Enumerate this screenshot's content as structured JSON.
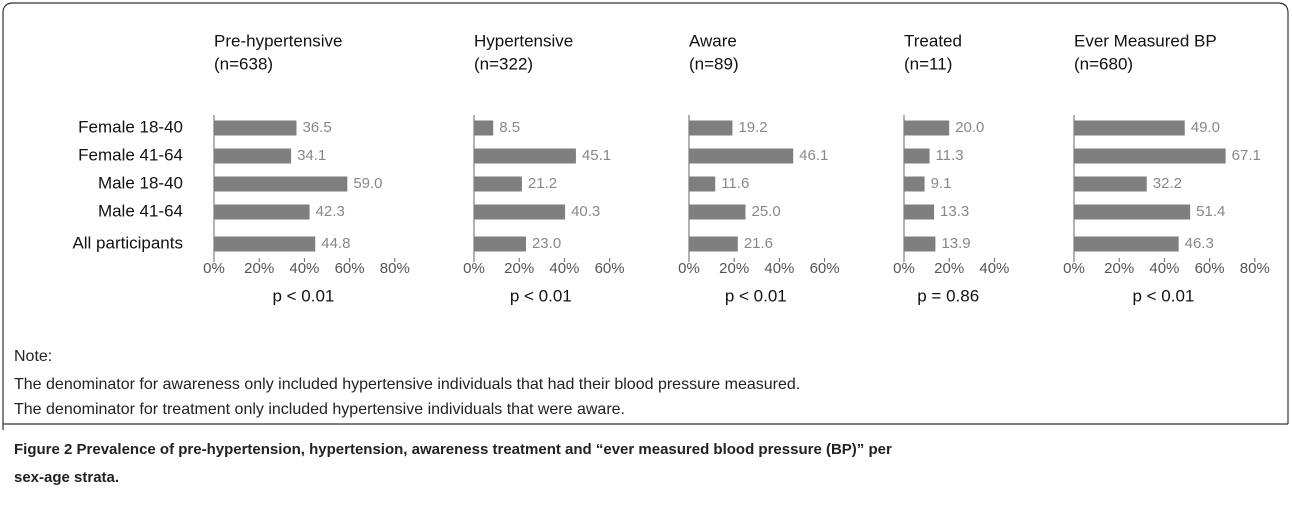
{
  "chart_data": [
    {
      "type": "bar",
      "title": "Pre-hypertensive",
      "subtitle": "(n=638)",
      "categories": [
        "Female 18-40",
        "Female 41-64",
        "Male 18-40",
        "Male 41-64",
        "All participants"
      ],
      "values": [
        36.5,
        34.1,
        59.0,
        42.3,
        44.8
      ],
      "value_labels": [
        "36.5",
        "34.1",
        "59.0",
        "42.3",
        "44.8"
      ],
      "color": "#7f7f7f",
      "xlim": [
        0,
        80
      ],
      "xticks": [
        {
          "value": 0,
          "label": "0%"
        },
        {
          "value": 20,
          "label": "20%"
        },
        {
          "value": 40,
          "label": "40%"
        },
        {
          "value": 60,
          "label": "60%"
        },
        {
          "value": 80,
          "label": "80%"
        }
      ],
      "annotation": "p < 0.01"
    },
    {
      "type": "bar",
      "title": "Hypertensive",
      "subtitle": "(n=322)",
      "values": [
        8.5,
        45.1,
        21.2,
        40.3,
        23.0
      ],
      "value_labels": [
        "8.5",
        "45.1",
        "21.2",
        "40.3",
        "23.0"
      ],
      "color": "#7f7f7f",
      "xlim": [
        0,
        60
      ],
      "xticks": [
        {
          "value": 0,
          "label": "0%"
        },
        {
          "value": 20,
          "label": "20%"
        },
        {
          "value": 40,
          "label": "40%"
        },
        {
          "value": 60,
          "label": "60%"
        }
      ],
      "annotation": "p < 0.01"
    },
    {
      "type": "bar",
      "title": "Aware",
      "subtitle": "(n=89)",
      "values": [
        19.2,
        46.1,
        11.6,
        25.0,
        21.6
      ],
      "value_labels": [
        "19.2",
        "46.1",
        "11.6",
        "25.0",
        "21.6"
      ],
      "color": "#7f7f7f",
      "xlim": [
        0,
        60
      ],
      "xticks": [
        {
          "value": 0,
          "label": "0%"
        },
        {
          "value": 20,
          "label": "20%"
        },
        {
          "value": 40,
          "label": "40%"
        },
        {
          "value": 60,
          "label": "60%"
        }
      ],
      "annotation": "p < 0.01"
    },
    {
      "type": "bar",
      "title": "Treated",
      "subtitle": "(n=11)",
      "values": [
        20.0,
        11.3,
        9.1,
        13.3,
        13.9
      ],
      "value_labels": [
        "20.0",
        "11.3",
        "9.1",
        "13.3",
        "13.9"
      ],
      "color": "#7f7f7f",
      "xlim": [
        0,
        40
      ],
      "xticks": [
        {
          "value": 0,
          "label": "0%"
        },
        {
          "value": 20,
          "label": "20%"
        },
        {
          "value": 40,
          "label": "40%"
        }
      ],
      "annotation": "p = 0.86"
    },
    {
      "type": "bar",
      "title": "Ever Measured BP",
      "subtitle": "(n=680)",
      "values": [
        49.0,
        67.1,
        32.2,
        51.4,
        46.3
      ],
      "value_labels": [
        "49.0",
        "67.1",
        "32.2",
        "51.4",
        "46.3"
      ],
      "color": "#7f7f7f",
      "xlim": [
        0,
        80
      ],
      "xticks": [
        {
          "value": 0,
          "label": "0%"
        },
        {
          "value": 20,
          "label": "20%"
        },
        {
          "value": 40,
          "label": "40%"
        },
        {
          "value": 60,
          "label": "60%"
        },
        {
          "value": 80,
          "label": "80%"
        }
      ],
      "annotation": "p < 0.01"
    }
  ],
  "note": {
    "label": "Note:",
    "lines": [
      "The denominator for awareness only included hypertensive individuals that had their blood pressure measured.",
      "The denominator for treatment only included hypertensive individuals that were aware."
    ]
  },
  "caption": {
    "label": "Figure 2",
    "lines": [
      "Prevalence of pre-hypertension, hypertension, awareness treatment and “ever measured blood pressure (BP)” per",
      "sex-age strata."
    ]
  }
}
